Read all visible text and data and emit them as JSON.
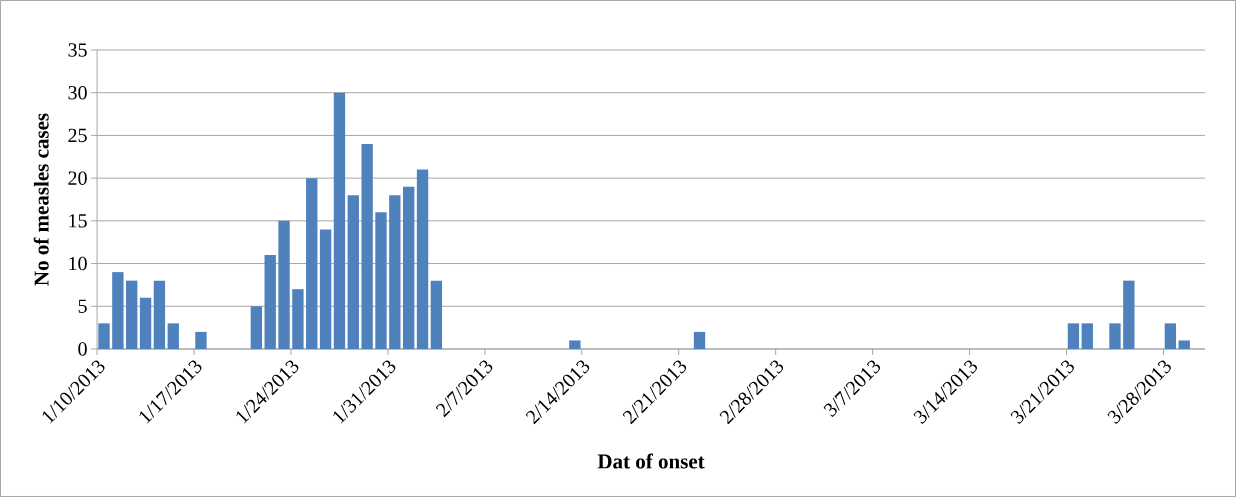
{
  "chart_data": {
    "type": "bar",
    "xlabel": "Dat of onset",
    "ylabel": "No of measles cases",
    "categories": [
      "1/10/2013",
      null,
      null,
      null,
      null,
      null,
      null,
      "1/17/2013",
      null,
      null,
      null,
      null,
      null,
      null,
      "1/24/2013",
      null,
      null,
      null,
      null,
      null,
      null,
      "1/31/2013",
      null,
      null,
      null,
      null,
      null,
      null,
      "2/7/2013",
      null,
      null,
      null,
      null,
      null,
      null,
      "2/14/2013",
      null,
      null,
      null,
      null,
      null,
      null,
      "2/21/2013",
      null,
      null,
      null,
      null,
      null,
      null,
      "2/28/2013",
      null,
      null,
      null,
      null,
      null,
      null,
      "3/7/2013",
      null,
      null,
      null,
      null,
      null,
      null,
      "3/14/2013",
      null,
      null,
      null,
      null,
      null,
      null,
      "3/21/2013",
      null,
      null,
      null,
      null,
      null,
      null,
      "3/28/2013",
      null,
      null
    ],
    "values": [
      3,
      9,
      8,
      6,
      8,
      3,
      0,
      2,
      0,
      0,
      0,
      5,
      11,
      15,
      7,
      20,
      14,
      30,
      18,
      24,
      16,
      18,
      19,
      21,
      8,
      0,
      0,
      0,
      0,
      0,
      0,
      0,
      0,
      0,
      1,
      0,
      0,
      0,
      0,
      0,
      0,
      0,
      0,
      2,
      0,
      0,
      0,
      0,
      0,
      0,
      0,
      0,
      0,
      0,
      0,
      0,
      0,
      0,
      0,
      0,
      0,
      0,
      0,
      0,
      0,
      0,
      0,
      0,
      0,
      0,
      3,
      3,
      0,
      3,
      8,
      0,
      0,
      3,
      1,
      0
    ],
    "color": "#4f81bd",
    "ylim": [
      0,
      35
    ],
    "yticks": [
      0,
      5,
      10,
      15,
      20,
      25,
      30,
      35
    ],
    "grid": "y"
  }
}
